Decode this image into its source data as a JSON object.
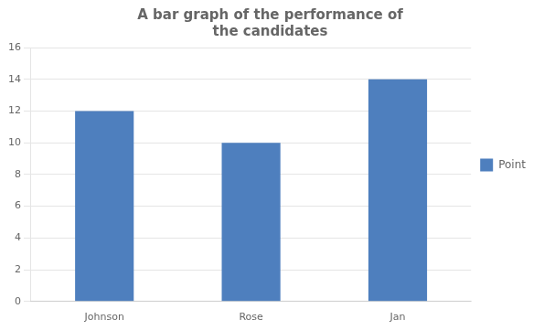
{
  "chart_data": {
    "type": "bar",
    "title": "A bar graph of the performance of\nthe candidates",
    "categories": [
      "Johnson",
      "Rose",
      "Jan"
    ],
    "series": [
      {
        "name": "Point",
        "color": "#4E7FBE",
        "values": [
          12,
          10,
          14
        ]
      }
    ],
    "ylim": [
      0,
      16
    ],
    "yticks": [
      0,
      2,
      4,
      6,
      8,
      10,
      12,
      14,
      16
    ],
    "grid": true,
    "legend": "right"
  }
}
